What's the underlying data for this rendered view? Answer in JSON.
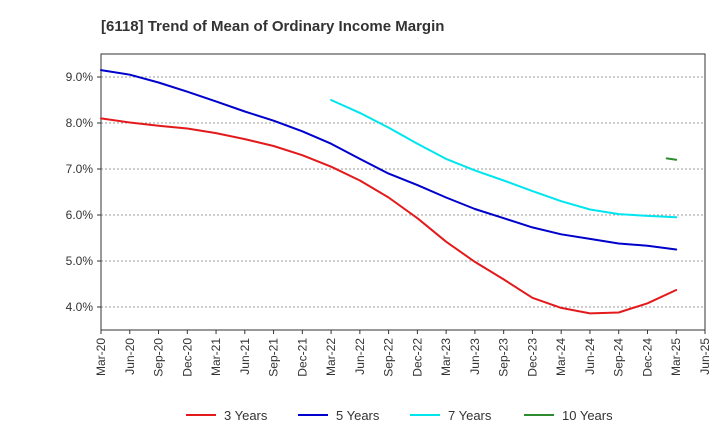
{
  "chart_data": {
    "type": "line",
    "title": "[6118]  Trend of Mean of Ordinary Income Margin",
    "xlabel": "",
    "ylabel": "",
    "y_unit": "%",
    "ylim": [
      3.5,
      9.5
    ],
    "y_ticks": [
      "4.0%",
      "5.0%",
      "6.0%",
      "7.0%",
      "8.0%",
      "9.0%"
    ],
    "y_tick_values": [
      4.0,
      5.0,
      6.0,
      7.0,
      8.0,
      9.0
    ],
    "x_ticks": [
      "Mar-20",
      "Jun-20",
      "Sep-20",
      "Dec-20",
      "Mar-21",
      "Jun-21",
      "Sep-21",
      "Dec-21",
      "Mar-22",
      "Jun-22",
      "Sep-22",
      "Dec-22",
      "Mar-23",
      "Jun-23",
      "Sep-23",
      "Dec-23",
      "Mar-24",
      "Jun-24",
      "Sep-24",
      "Dec-24",
      "Mar-25",
      "Jun-25"
    ],
    "grid": "horizontal",
    "legend_position": "bottom",
    "series": [
      {
        "name": "3 Years",
        "color": "#e31a1c",
        "points": [
          [
            "Mar-20",
            8.1
          ],
          [
            "Jun-20",
            8.01
          ],
          [
            "Sep-20",
            7.94
          ],
          [
            "Dec-20",
            7.88
          ],
          [
            "Mar-21",
            7.78
          ],
          [
            "Jun-21",
            7.65
          ],
          [
            "Sep-21",
            7.5
          ],
          [
            "Dec-21",
            7.3
          ],
          [
            "Mar-22",
            7.05
          ],
          [
            "Jun-22",
            6.75
          ],
          [
            "Sep-22",
            6.38
          ],
          [
            "Dec-22",
            5.93
          ],
          [
            "Mar-23",
            5.42
          ],
          [
            "Jun-23",
            4.98
          ],
          [
            "Sep-23",
            4.6
          ],
          [
            "Dec-23",
            4.2
          ],
          [
            "Mar-24",
            3.98
          ],
          [
            "Jun-24",
            3.86
          ],
          [
            "Sep-24",
            3.88
          ],
          [
            "Dec-24",
            4.08
          ],
          [
            "Mar-25",
            4.37
          ]
        ]
      },
      {
        "name": "5 Years",
        "color": "#0000cc",
        "points": [
          [
            "Mar-20",
            9.15
          ],
          [
            "Jun-20",
            9.05
          ],
          [
            "Sep-20",
            8.88
          ],
          [
            "Dec-20",
            8.68
          ],
          [
            "Mar-21",
            8.47
          ],
          [
            "Jun-21",
            8.25
          ],
          [
            "Sep-21",
            8.05
          ],
          [
            "Dec-21",
            7.82
          ],
          [
            "Mar-22",
            7.55
          ],
          [
            "Jun-22",
            7.22
          ],
          [
            "Sep-22",
            6.9
          ],
          [
            "Dec-22",
            6.65
          ],
          [
            "Mar-23",
            6.38
          ],
          [
            "Jun-23",
            6.13
          ],
          [
            "Sep-23",
            5.93
          ],
          [
            "Dec-23",
            5.73
          ],
          [
            "Mar-24",
            5.58
          ],
          [
            "Jun-24",
            5.48
          ],
          [
            "Sep-24",
            5.38
          ],
          [
            "Dec-24",
            5.33
          ],
          [
            "Mar-25",
            5.25
          ]
        ]
      },
      {
        "name": "7 Years",
        "color": "#00e5ee",
        "points": [
          [
            "Mar-22",
            8.5
          ],
          [
            "Jun-22",
            8.22
          ],
          [
            "Sep-22",
            7.9
          ],
          [
            "Dec-22",
            7.55
          ],
          [
            "Mar-23",
            7.22
          ],
          [
            "Jun-23",
            6.97
          ],
          [
            "Sep-23",
            6.75
          ],
          [
            "Dec-23",
            6.52
          ],
          [
            "Mar-24",
            6.3
          ],
          [
            "Jun-24",
            6.12
          ],
          [
            "Sep-24",
            6.02
          ],
          [
            "Dec-24",
            5.98
          ],
          [
            "Mar-25",
            5.95
          ]
        ]
      },
      {
        "name": "10 Years",
        "color": "#2e8b2e",
        "points": [
          [
            "Feb-25",
            7.23
          ],
          [
            "Mar-25",
            7.2
          ]
        ]
      }
    ]
  }
}
